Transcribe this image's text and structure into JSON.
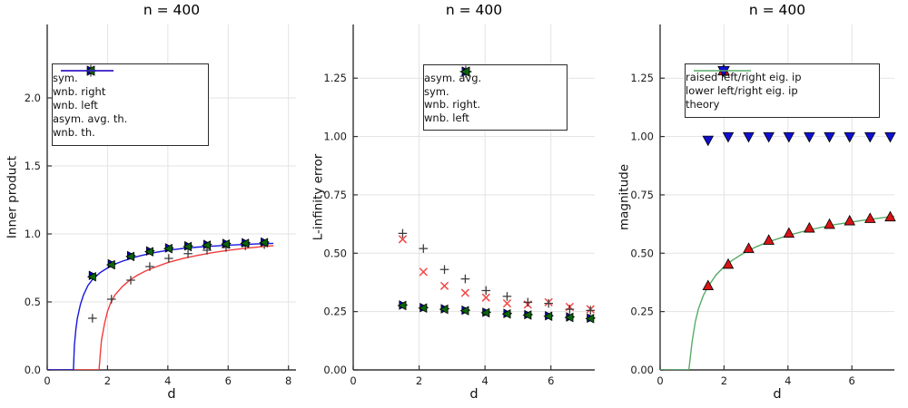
{
  "palette": {
    "background": "#ffffff",
    "axis_color": "#333333",
    "grid_color": "#e3e3e3",
    "legend_border": "#2b2b2b"
  },
  "chart_data": [
    {
      "type": "scatter",
      "title": "n = 400",
      "xlabel": "d",
      "ylabel": "Inner product",
      "xlim": [
        0,
        8.25
      ],
      "ylim": [
        0,
        2.54
      ],
      "xticks": {
        "values": [
          0,
          2,
          4,
          6,
          8
        ],
        "labels": [
          "0",
          "2",
          "4",
          "6",
          "8"
        ]
      },
      "yticks": {
        "values": [
          0,
          0.5,
          1.0,
          1.5,
          2.0
        ],
        "labels": [
          "0.0",
          "0.5",
          "1.0",
          "1.5",
          "2.0"
        ]
      },
      "grid": true,
      "legend_position": "upper-left-inside",
      "x": [
        1.5,
        2.13,
        2.77,
        3.4,
        4.03,
        4.67,
        5.3,
        5.93,
        6.57,
        7.2
      ],
      "series": [
        {
          "name": "sym.",
          "kind": "scatter",
          "marker": "plus",
          "color": "#3a3a3a",
          "values": [
            0.38,
            0.52,
            0.66,
            0.76,
            0.82,
            0.855,
            0.88,
            0.9,
            0.912,
            0.922
          ]
        },
        {
          "name": "wnb. right",
          "kind": "scatter",
          "marker": "triangle-right",
          "color": "#0000cd",
          "values": [
            0.695,
            0.78,
            0.84,
            0.875,
            0.897,
            0.912,
            0.922,
            0.93,
            0.935,
            0.94
          ]
        },
        {
          "name": "wnb. left",
          "kind": "scatter",
          "marker": "triangle-left",
          "color": "#0a650a",
          "values": [
            0.685,
            0.773,
            0.834,
            0.869,
            0.892,
            0.907,
            0.917,
            0.925,
            0.931,
            0.936
          ]
        },
        {
          "name": "asym. avg. th.",
          "kind": "line",
          "color": "#f23c3c",
          "points": [
            [
              0,
              0
            ],
            [
              1.72,
              0
            ],
            [
              1.76,
              0.12
            ],
            [
              1.8,
              0.22
            ],
            [
              1.9,
              0.34
            ],
            [
              2.0,
              0.43
            ],
            [
              2.1,
              0.49
            ],
            [
              2.25,
              0.552
            ],
            [
              2.5,
              0.615
            ],
            [
              2.75,
              0.662
            ],
            [
              3.0,
              0.697
            ],
            [
              3.25,
              0.726
            ],
            [
              3.5,
              0.749
            ],
            [
              4.0,
              0.789
            ],
            [
              4.5,
              0.819
            ],
            [
              5.0,
              0.843
            ],
            [
              5.5,
              0.863
            ],
            [
              6.0,
              0.879
            ],
            [
              6.5,
              0.893
            ],
            [
              7.0,
              0.904
            ],
            [
              7.5,
              0.914
            ]
          ]
        },
        {
          "name": "wnb. th.",
          "kind": "line",
          "color": "#1616dc",
          "points": [
            [
              0,
              0
            ],
            [
              0.87,
              0
            ],
            [
              0.9,
              0.18
            ],
            [
              0.95,
              0.3
            ],
            [
              1.0,
              0.38
            ],
            [
              1.1,
              0.48
            ],
            [
              1.2,
              0.55
            ],
            [
              1.35,
              0.62
            ],
            [
              1.5,
              0.665
            ],
            [
              1.75,
              0.715
            ],
            [
              2.0,
              0.75
            ],
            [
              2.25,
              0.778
            ],
            [
              2.5,
              0.8
            ],
            [
              3.0,
              0.835
            ],
            [
              3.5,
              0.861
            ],
            [
              4.0,
              0.879
            ],
            [
              4.5,
              0.893
            ],
            [
              5.0,
              0.903
            ],
            [
              5.5,
              0.911
            ],
            [
              6.0,
              0.917
            ],
            [
              6.5,
              0.922
            ],
            [
              7.0,
              0.927
            ],
            [
              7.5,
              0.931
            ]
          ]
        }
      ]
    },
    {
      "type": "scatter",
      "title": "n = 400",
      "xlabel": "d",
      "ylabel": "L-infinity error",
      "xlim": [
        0,
        7.33
      ],
      "ylim": [
        0,
        1.48
      ],
      "xticks": {
        "values": [
          0,
          2,
          4,
          6
        ],
        "labels": [
          "0",
          "2",
          "4",
          "6"
        ]
      },
      "yticks": {
        "values": [
          0,
          0.25,
          0.5,
          0.75,
          1.0,
          1.25
        ],
        "labels": [
          "0.00",
          "0.25",
          "0.50",
          "0.75",
          "1.00",
          "1.25"
        ]
      },
      "grid": true,
      "legend_position": "upper-center-inside",
      "x": [
        1.5,
        2.13,
        2.77,
        3.4,
        4.03,
        4.67,
        5.3,
        5.93,
        6.57,
        7.2
      ],
      "series": [
        {
          "name": "asym. avg.",
          "kind": "scatter",
          "marker": "x",
          "color": "#f54545",
          "values": [
            0.56,
            0.42,
            0.36,
            0.33,
            0.31,
            0.285,
            0.28,
            0.29,
            0.27,
            0.26
          ]
        },
        {
          "name": "sym.",
          "kind": "scatter",
          "marker": "plus",
          "color": "#3a3a3a",
          "values": [
            0.585,
            0.52,
            0.43,
            0.39,
            0.34,
            0.315,
            0.29,
            0.285,
            0.26,
            0.255
          ]
        },
        {
          "name": "wnb. right.",
          "kind": "scatter",
          "marker": "triangle-right",
          "color": "#0000cd",
          "values": [
            0.278,
            0.267,
            0.262,
            0.256,
            0.247,
            0.242,
            0.237,
            0.232,
            0.227,
            0.222
          ]
        },
        {
          "name": "wnb. left",
          "kind": "scatter",
          "marker": "triangle-left",
          "color": "#0a650a",
          "values": [
            0.276,
            0.265,
            0.26,
            0.254,
            0.245,
            0.24,
            0.235,
            0.23,
            0.225,
            0.22
          ]
        }
      ]
    },
    {
      "type": "scatter",
      "title": "n = 400",
      "xlabel": "d",
      "ylabel": "magnitude",
      "xlim": [
        0,
        7.33
      ],
      "ylim": [
        0,
        1.48
      ],
      "xticks": {
        "values": [
          0,
          2,
          4,
          6
        ],
        "labels": [
          "0",
          "2",
          "4",
          "6"
        ]
      },
      "yticks": {
        "values": [
          0,
          0.25,
          0.5,
          0.75,
          1.0,
          1.25
        ],
        "labels": [
          "0.00",
          "0.25",
          "0.50",
          "0.75",
          "1.00",
          "1.25"
        ]
      },
      "grid": true,
      "legend_position": "upper-center-inside",
      "x": [
        1.5,
        2.13,
        2.77,
        3.4,
        4.03,
        4.67,
        5.3,
        5.93,
        6.57,
        7.2
      ],
      "series": [
        {
          "name": "raised left/right eig. ip",
          "kind": "scatter",
          "marker": "triangle-up",
          "color": "#d81414",
          "values": [
            0.36,
            0.452,
            0.52,
            0.555,
            0.585,
            0.607,
            0.623,
            0.638,
            0.648,
            0.655
          ]
        },
        {
          "name": "lower left/right eig. ip",
          "kind": "scatter",
          "marker": "triangle-down",
          "color": "#0f0fd2",
          "values": [
            0.985,
            1.0,
            1.0,
            1.0,
            1.0,
            1.0,
            1.0,
            1.0,
            1.0,
            1.0
          ]
        },
        {
          "name": "theory",
          "kind": "line",
          "color": "#56ac68",
          "points": [
            [
              0,
              0
            ],
            [
              0.9,
              0
            ],
            [
              0.95,
              0.06
            ],
            [
              1.0,
              0.12
            ],
            [
              1.1,
              0.205
            ],
            [
              1.2,
              0.262
            ],
            [
              1.35,
              0.318
            ],
            [
              1.5,
              0.357
            ],
            [
              1.75,
              0.407
            ],
            [
              2.0,
              0.442
            ],
            [
              2.25,
              0.469
            ],
            [
              2.5,
              0.491
            ],
            [
              2.75,
              0.51
            ],
            [
              3.0,
              0.527
            ],
            [
              3.25,
              0.541
            ],
            [
              3.5,
              0.554
            ],
            [
              4.0,
              0.576
            ],
            [
              4.5,
              0.594
            ],
            [
              5.0,
              0.61
            ],
            [
              5.5,
              0.623
            ],
            [
              6.0,
              0.634
            ],
            [
              6.5,
              0.644
            ],
            [
              7.0,
              0.653
            ],
            [
              7.33,
              0.659
            ]
          ]
        }
      ]
    }
  ]
}
